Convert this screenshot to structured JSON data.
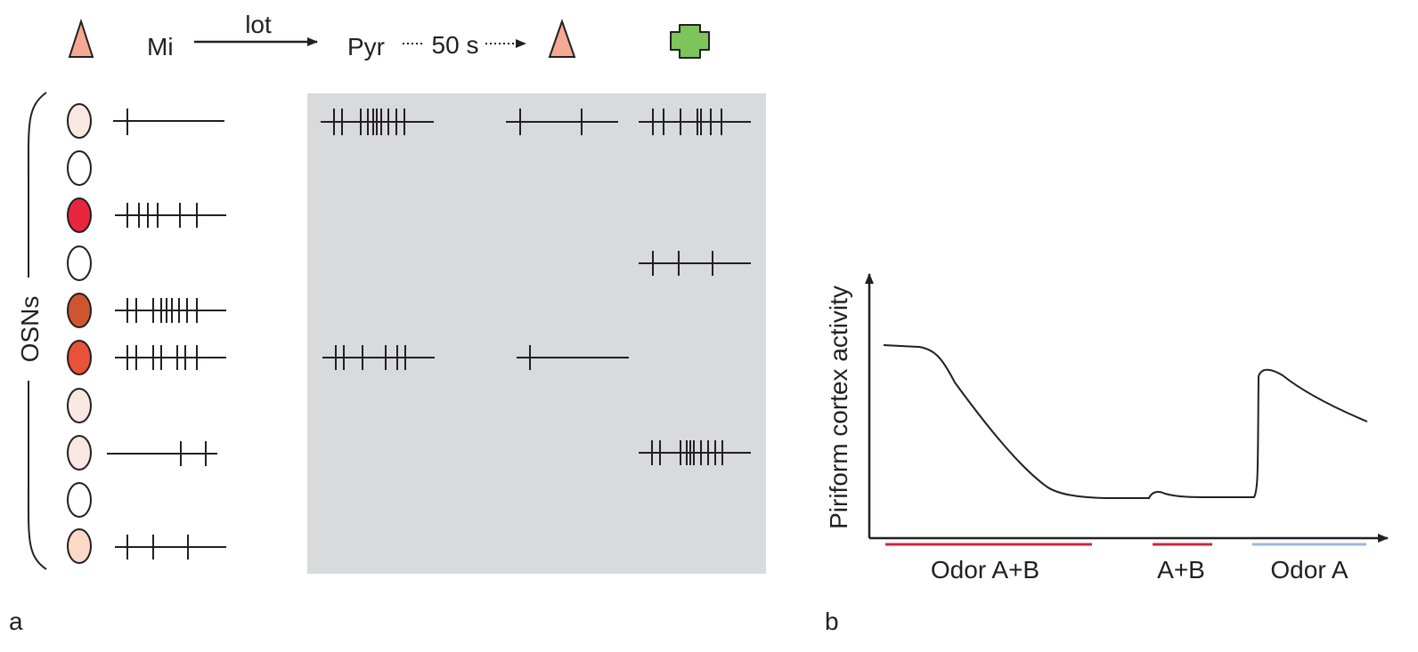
{
  "panel_a": {
    "label": "a",
    "header": {
      "mi": "Mi",
      "lot": "lot",
      "pyr": "Pyr",
      "delay": "50 s"
    },
    "osn_label": "OSNs",
    "osn_fills": [
      "#f8e8e1",
      "#ffffff",
      "#e8263d",
      "#ffffff",
      "#cf5530",
      "#e8513a",
      "#f8e8e1",
      "#f8e8e1",
      "#ffffff",
      "#fbd9c8"
    ],
    "colors": {
      "pyramidal": "#f4a993",
      "green_cross": "#7dc45a",
      "gray_box": "#d9dadc",
      "ink": "#231f20"
    }
  },
  "panel_b": {
    "label": "b",
    "y_axis_label": "Piriform cortex activity",
    "stimuli": [
      {
        "label": "Odor A+B",
        "color": "#c8283d"
      },
      {
        "label": "A+B",
        "color": "#c8283d"
      },
      {
        "label": "Odor A",
        "color": "#9ab8dc"
      }
    ]
  }
}
